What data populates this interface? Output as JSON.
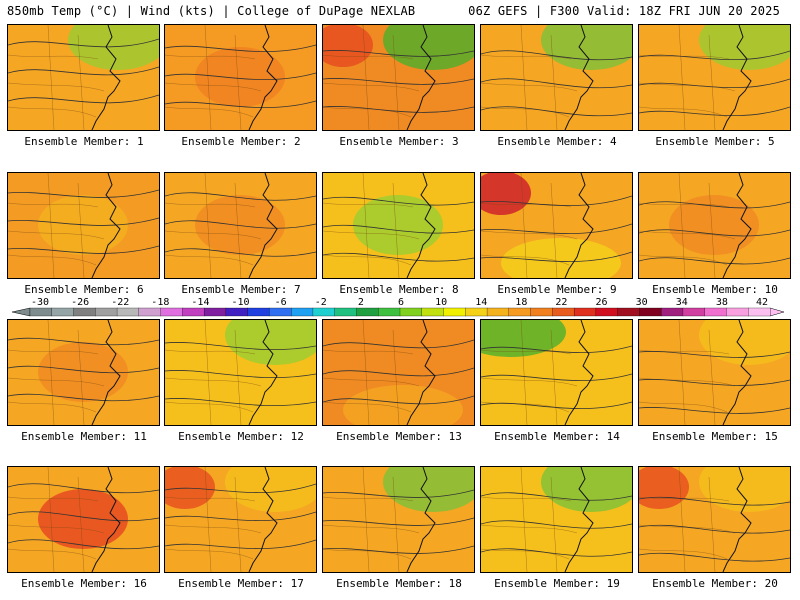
{
  "header": {
    "left": "850mb Temp (°C) | Wind (kts) | College of DuPage NEXLAB",
    "right": "06Z GEFS | F300 Valid: 18Z FRI JUN 20 2025"
  },
  "panels": [
    {
      "label": "Ensemble Member: 1",
      "bands": [
        [
          "#f5a623",
          0
        ],
        [
          "#f0b21f",
          0.15
        ]
      ],
      "tint": "#9acd32",
      "tintSide": "top-right"
    },
    {
      "label": "Ensemble Member: 2",
      "bands": [
        [
          "#f59a23",
          0
        ]
      ],
      "tint": "#f08020",
      "tintSide": "center"
    },
    {
      "label": "Ensemble Member: 3",
      "bands": [
        [
          "#f08a22",
          0
        ]
      ],
      "tint": "#4caf2c",
      "tintSide": "top-right",
      "hot": "#e64520"
    },
    {
      "label": "Ensemble Member: 4",
      "bands": [
        [
          "#f5a623",
          0
        ]
      ],
      "tint": "#7cc23a",
      "tintSide": "top-right"
    },
    {
      "label": "Ensemble Member: 5",
      "bands": [
        [
          "#f5a623",
          0
        ]
      ],
      "tint": "#9acd32",
      "tintSide": "top-right"
    },
    {
      "label": "Ensemble Member: 6",
      "bands": [
        [
          "#f39b23",
          0
        ]
      ],
      "tint": "#f5b21f",
      "tintSide": "center"
    },
    {
      "label": "Ensemble Member: 7",
      "bands": [
        [
          "#f5a623",
          0
        ]
      ],
      "tint": "#f08a22",
      "tintSide": "center"
    },
    {
      "label": "Ensemble Member: 8",
      "bands": [
        [
          "#f5c01c",
          0
        ]
      ],
      "tint": "#9acd32",
      "tintSide": "center"
    },
    {
      "label": "Ensemble Member: 9",
      "bands": [
        [
          "#f5a623",
          0
        ]
      ],
      "tint": "#f5d21a",
      "tintSide": "bottom",
      "hot": "#c8102e"
    },
    {
      "label": "Ensemble Member: 10",
      "bands": [
        [
          "#f5a623",
          0
        ]
      ],
      "tint": "#f08a22",
      "tintSide": "center"
    },
    {
      "label": "Ensemble Member: 11",
      "bands": [
        [
          "#f5a623",
          0
        ]
      ],
      "tint": "#f08a22",
      "tintSide": "center"
    },
    {
      "label": "Ensemble Member: 12",
      "bands": [
        [
          "#f5c01c",
          0
        ]
      ],
      "tint": "#9acd32",
      "tintSide": "top-right"
    },
    {
      "label": "Ensemble Member: 13",
      "bands": [
        [
          "#f08a22",
          0
        ]
      ],
      "tint": "#f5a623",
      "tintSide": "bottom"
    },
    {
      "label": "Ensemble Member: 14",
      "bands": [
        [
          "#f5c01c",
          0
        ]
      ],
      "tint": "#4caf2c",
      "tintSide": "top-left"
    },
    {
      "label": "Ensemble Member: 15",
      "bands": [
        [
          "#f5a623",
          0
        ]
      ],
      "tint": "#f5c01c",
      "tintSide": "top-right"
    },
    {
      "label": "Ensemble Member: 16",
      "bands": [
        [
          "#f5a623",
          0
        ]
      ],
      "tint": "#e64520",
      "tintSide": "center"
    },
    {
      "label": "Ensemble Member: 17",
      "bands": [
        [
          "#f5a623",
          0
        ]
      ],
      "tint": "#f5c01c",
      "tintSide": "top-right",
      "hot": "#e64520"
    },
    {
      "label": "Ensemble Member: 18",
      "bands": [
        [
          "#f5a623",
          0
        ]
      ],
      "tint": "#7cc23a",
      "tintSide": "top-right"
    },
    {
      "label": "Ensemble Member: 19",
      "bands": [
        [
          "#f5c01c",
          0
        ]
      ],
      "tint": "#7cc23a",
      "tintSide": "top-right"
    },
    {
      "label": "Ensemble Member: 20",
      "bands": [
        [
          "#f5a623",
          0
        ]
      ],
      "tint": "#f5c01c",
      "tintSide": "top-right",
      "hot": "#e64520"
    }
  ],
  "colorbar": {
    "labels": [
      "-30",
      "-26",
      "-22",
      "-18",
      "-14",
      "-10",
      "-6",
      "-2",
      "2",
      "6",
      "10",
      "14",
      "18",
      "22",
      "26",
      "30",
      "34",
      "38",
      "42"
    ],
    "colors": [
      "#7f8c8d",
      "#95a5a6",
      "#808080",
      "#a0a0a0",
      "#b8b8b8",
      "#d0a0d0",
      "#e070e0",
      "#c040c0",
      "#8020a0",
      "#4020c0",
      "#2040e0",
      "#3070f0",
      "#20a0f0",
      "#20d0d0",
      "#20c080",
      "#20a040",
      "#40c040",
      "#80d020",
      "#c0e010",
      "#f0f000",
      "#f5d21a",
      "#f5b21f",
      "#f59a23",
      "#f08020",
      "#e85c1e",
      "#e03020",
      "#d01020",
      "#a01020",
      "#800020",
      "#a02080",
      "#d040a0",
      "#f070d0",
      "#f8a0e0",
      "#fcc0f0"
    ]
  }
}
